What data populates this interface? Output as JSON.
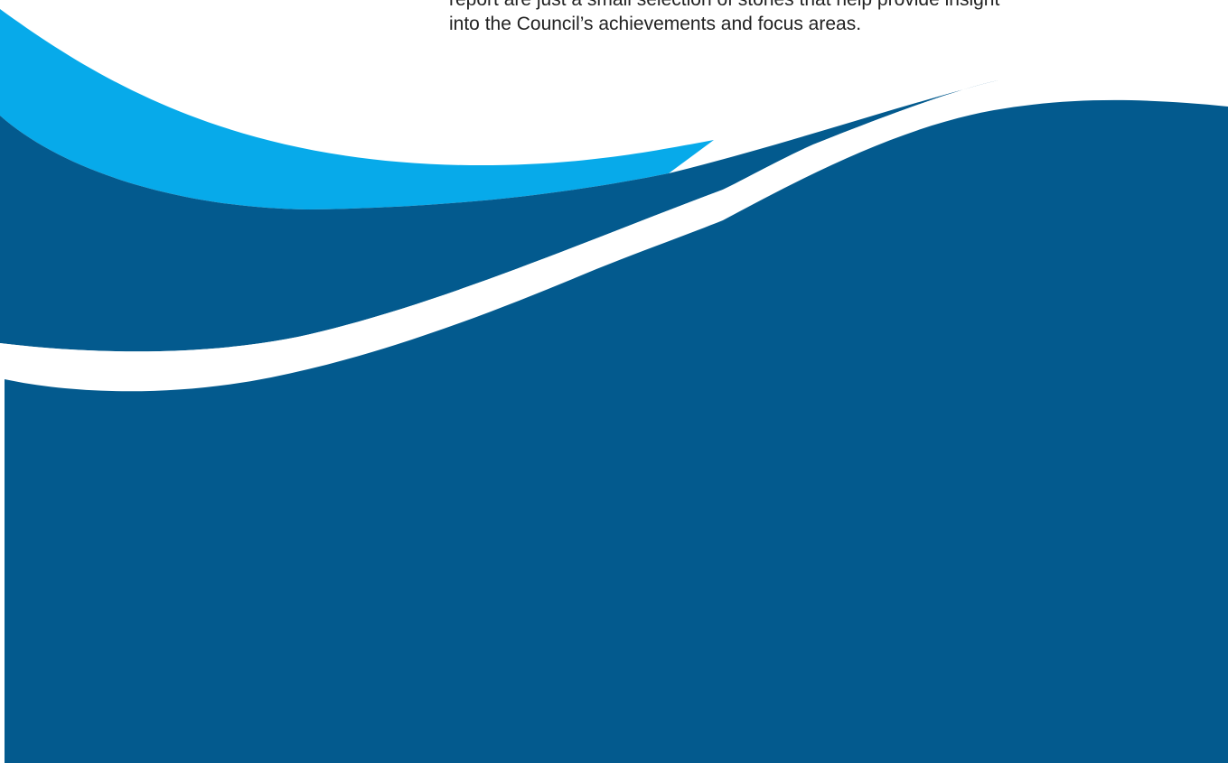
{
  "document": {
    "intro_line_partial": "report are just a small selection of stories that help provide insight",
    "intro_line": "into the Council’s achievements and focus areas."
  },
  "colors": {
    "light_blue_wave": "#07AAEA",
    "dark_blue_wave": "#035A8E",
    "background": "#FFFFFF",
    "text": "#222222"
  }
}
